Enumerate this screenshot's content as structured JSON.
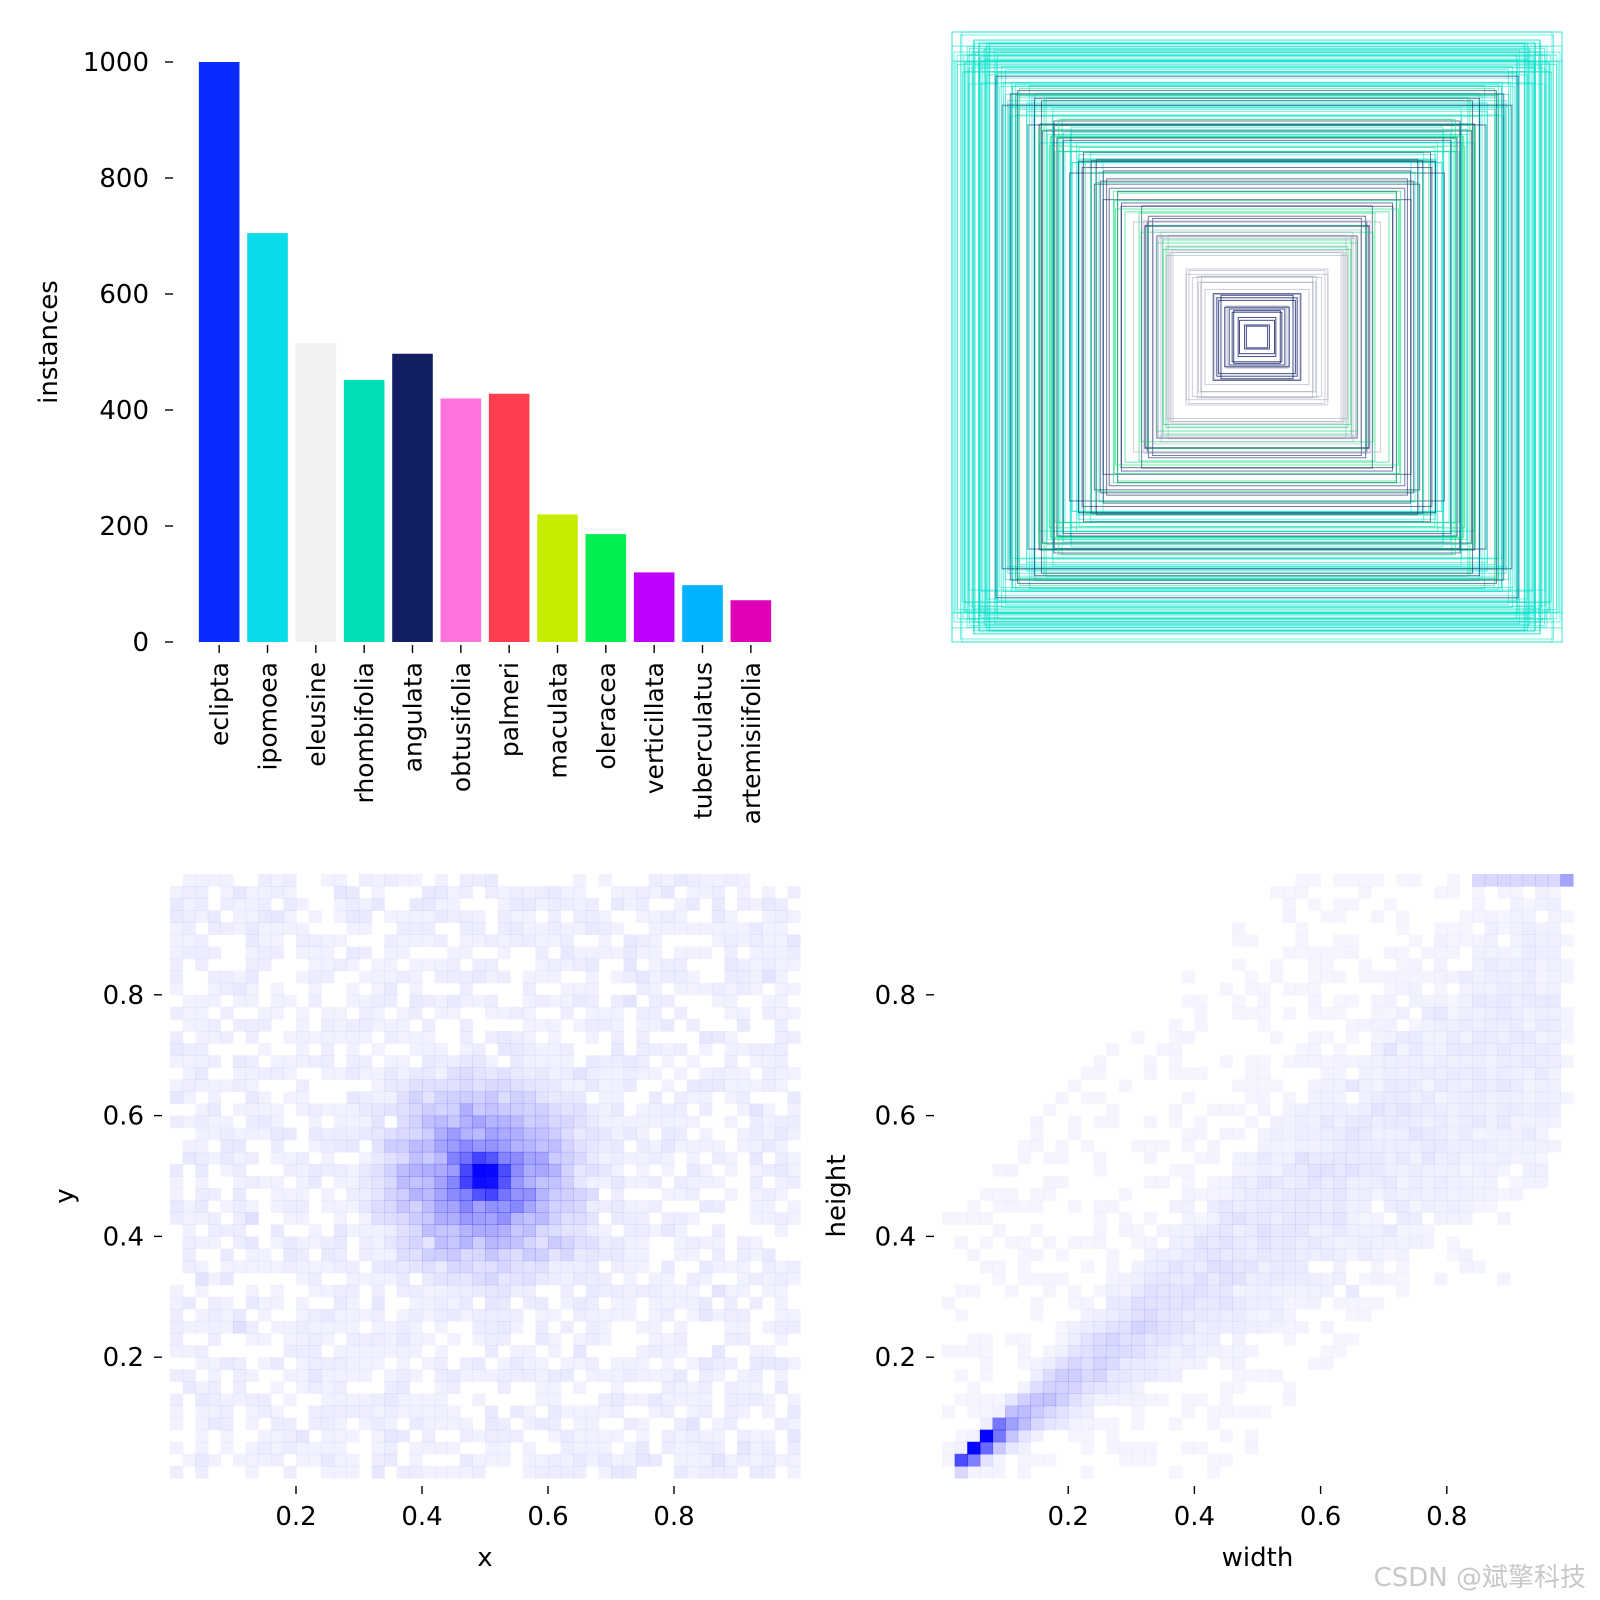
{
  "watermark": "CSDN @斌擎科技",
  "chart_data": [
    {
      "type": "bar",
      "ylabel": "instances",
      "ylim": [
        0,
        1000
      ],
      "yticks": [
        0,
        200,
        400,
        600,
        800,
        1000
      ],
      "categories": [
        "eclipta",
        "ipomoea",
        "eleusine",
        "rhombifolia",
        "angulata",
        "obtusifolia",
        "palmeri",
        "maculata",
        "oleracea",
        "verticillata",
        "tuberculatus",
        "artemisiifolia"
      ],
      "values": [
        1000,
        705,
        515,
        452,
        497,
        420,
        428,
        220,
        186,
        120,
        98,
        72
      ],
      "colors": [
        "#0a2bff",
        "#0adbe8",
        "#f2f2f2",
        "#00dfb8",
        "#131f63",
        "#ff74dc",
        "#ff3f50",
        "#c8ec00",
        "#00ef4e",
        "#be00ff",
        "#00b2ff",
        "#e000b8"
      ],
      "grid": false
    },
    {
      "type": "other",
      "description_kind": "overlaid centered bounding boxes",
      "colors": [
        "#00e0c8",
        "#14206a",
        "#00e070",
        "#9aa0b4"
      ]
    },
    {
      "type": "heatmap",
      "xlabel": "x",
      "ylabel": "y",
      "xlim": [
        0,
        1
      ],
      "ylim": [
        0,
        1
      ],
      "xticks": [
        "0.2",
        "0.4",
        "0.6",
        "0.8"
      ],
      "yticks": [
        "0.2",
        "0.4",
        "0.6",
        "0.8"
      ],
      "peak": [
        0.5,
        0.5
      ],
      "color": "#0000ff"
    },
    {
      "type": "heatmap",
      "xlabel": "width",
      "ylabel": "height",
      "xlim": [
        0,
        1
      ],
      "ylim": [
        0,
        1
      ],
      "xticks": [
        "0.2",
        "0.4",
        "0.6",
        "0.8"
      ],
      "yticks": [
        "0.2",
        "0.4",
        "0.6",
        "0.8"
      ],
      "peak": [
        0.05,
        0.05
      ],
      "color": "#0000ff"
    }
  ]
}
